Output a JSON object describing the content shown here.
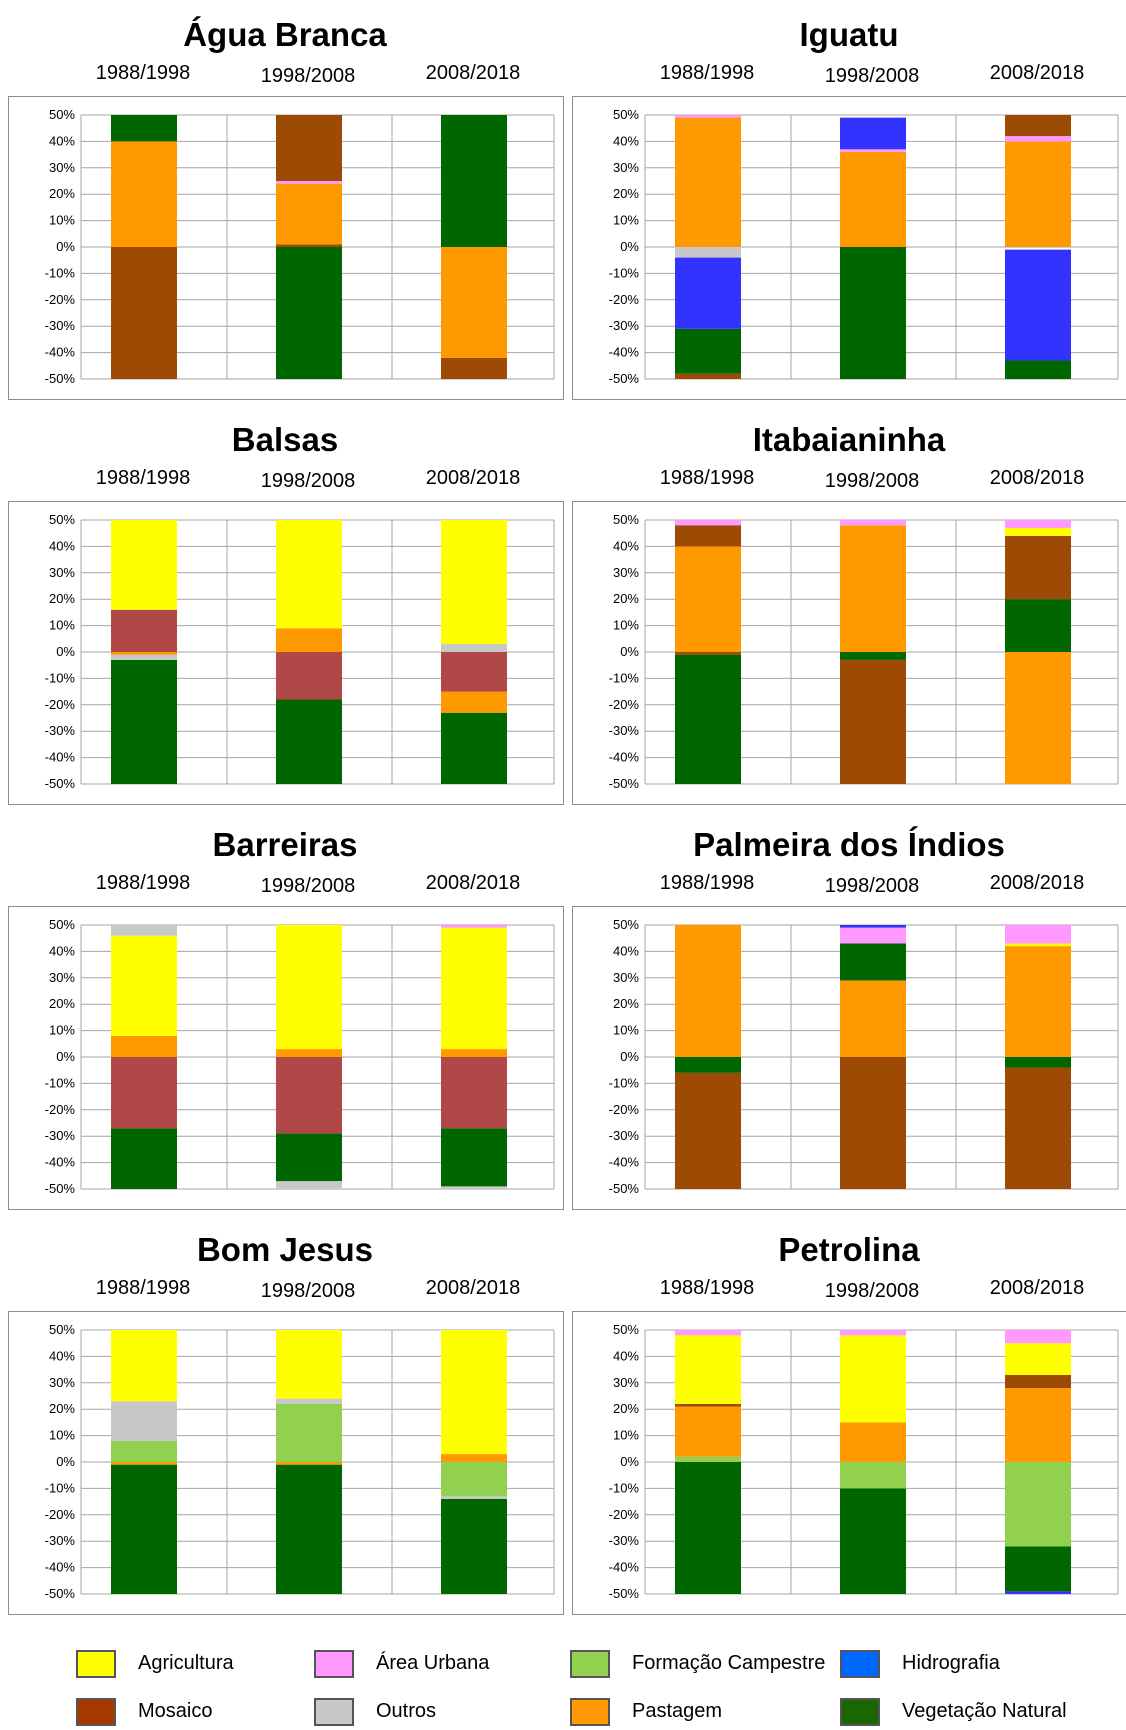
{
  "colors": {
    "Agricultura": "#ffff00",
    "Área Urbana": "#ff99ff",
    "Formação Campestre": "#92d050",
    "Hidrografia": "#3333ff",
    "Mosaico": "#9c4a04",
    "Mosaico (Agric.)": "#b04848",
    "Outros": "#c8c8c8",
    "Pastagem": "#ff9900",
    "Vegetação Natural": "#006600"
  },
  "legend": [
    {
      "label": "Agricultura",
      "color": "#ffff00"
    },
    {
      "label": "Área Urbana",
      "color": "#ff99ff"
    },
    {
      "label": "Formação Campestre",
      "color": "#92d050"
    },
    {
      "label": "Hidrografia",
      "color": "#0066ff"
    },
    {
      "label": "Mosaico",
      "color": "#a83800"
    },
    {
      "label": "Outros",
      "color": "#c8c8c8"
    },
    {
      "label": "Pastagem",
      "color": "#ff9900"
    },
    {
      "label": "Vegetação Natural",
      "color": "#1a6600"
    }
  ],
  "chart_data": [
    {
      "type": "bar",
      "stacked": true,
      "title": "Água Branca",
      "categories": [
        "1988/1998",
        "1998/2008",
        "2008/2018"
      ],
      "ylim": [
        -50,
        50
      ],
      "yticks": [
        -50,
        -40,
        -30,
        -20,
        -10,
        0,
        10,
        20,
        30,
        40,
        50
      ],
      "ytick_suffix": "%",
      "grid": true,
      "bars": [
        [
          {
            "from": -50,
            "to": 0,
            "class": "Mosaico"
          },
          {
            "from": 0,
            "to": 40,
            "class": "Pastagem"
          },
          {
            "from": 40,
            "to": 50,
            "class": "Vegetação Natural"
          }
        ],
        [
          {
            "from": -50,
            "to": 0,
            "class": "Vegetação Natural"
          },
          {
            "from": 0,
            "to": 1,
            "class": "Mosaico"
          },
          {
            "from": 1,
            "to": 24,
            "class": "Pastagem"
          },
          {
            "from": 24,
            "to": 25,
            "class": "Área Urbana"
          },
          {
            "from": 25,
            "to": 50,
            "class": "Mosaico"
          }
        ],
        [
          {
            "from": -50,
            "to": -42,
            "class": "Mosaico"
          },
          {
            "from": -42,
            "to": 0,
            "class": "Pastagem"
          },
          {
            "from": 0,
            "to": 50,
            "class": "Vegetação Natural"
          }
        ]
      ]
    },
    {
      "type": "bar",
      "stacked": true,
      "title": "Iguatu",
      "categories": [
        "1988/1998",
        "1998/2008",
        "2008/2018"
      ],
      "ylim": [
        -50,
        50
      ],
      "yticks": [
        -50,
        -40,
        -30,
        -20,
        -10,
        0,
        10,
        20,
        30,
        40,
        50
      ],
      "ytick_suffix": "%",
      "grid": true,
      "bars": [
        [
          {
            "from": -50,
            "to": -48,
            "class": "Mosaico"
          },
          {
            "from": -48,
            "to": -31,
            "class": "Vegetação Natural"
          },
          {
            "from": -31,
            "to": -4,
            "class": "Hidrografia"
          },
          {
            "from": -4,
            "to": 0,
            "class": "Outros"
          },
          {
            "from": 0,
            "to": 49,
            "class": "Pastagem"
          },
          {
            "from": 49,
            "to": 50,
            "class": "Área Urbana"
          }
        ],
        [
          {
            "from": -50,
            "to": 0,
            "class": "Vegetação Natural"
          },
          {
            "from": 0,
            "to": 36,
            "class": "Pastagem"
          },
          {
            "from": 36,
            "to": 37,
            "class": "Área Urbana"
          },
          {
            "from": 37,
            "to": 49,
            "class": "Hidrografia"
          }
        ],
        [
          {
            "from": -50,
            "to": -43,
            "class": "Vegetação Natural"
          },
          {
            "from": -43,
            "to": -1,
            "class": "Hidrografia"
          },
          {
            "from": 0,
            "to": 40,
            "class": "Pastagem"
          },
          {
            "from": 40,
            "to": 42,
            "class": "Área Urbana"
          },
          {
            "from": 42,
            "to": 50,
            "class": "Mosaico"
          }
        ]
      ]
    },
    {
      "type": "bar",
      "stacked": true,
      "title": "Balsas",
      "categories": [
        "1988/1998",
        "1998/2008",
        "2008/2018"
      ],
      "ylim": [
        -50,
        50
      ],
      "yticks": [
        -50,
        -40,
        -30,
        -20,
        -10,
        0,
        10,
        20,
        30,
        40,
        50
      ],
      "ytick_suffix": "%",
      "grid": true,
      "bars": [
        [
          {
            "from": -50,
            "to": -3,
            "class": "Vegetação Natural"
          },
          {
            "from": -3,
            "to": -1,
            "class": "Outros"
          },
          {
            "from": -1,
            "to": 0,
            "class": "Pastagem"
          },
          {
            "from": 0,
            "to": 16,
            "class": "Mosaico (Agric.)"
          },
          {
            "from": 16,
            "to": 50,
            "class": "Agricultura"
          }
        ],
        [
          {
            "from": -50,
            "to": -18,
            "class": "Vegetação Natural"
          },
          {
            "from": -18,
            "to": 0,
            "class": "Mosaico (Agric.)"
          },
          {
            "from": 0,
            "to": 9,
            "class": "Pastagem"
          },
          {
            "from": 9,
            "to": 50,
            "class": "Agricultura"
          }
        ],
        [
          {
            "from": -50,
            "to": -23,
            "class": "Vegetação Natural"
          },
          {
            "from": -23,
            "to": -15,
            "class": "Pastagem"
          },
          {
            "from": -15,
            "to": 0,
            "class": "Mosaico (Agric.)"
          },
          {
            "from": 0,
            "to": 3,
            "class": "Outros"
          },
          {
            "from": 3,
            "to": 50,
            "class": "Agricultura"
          }
        ]
      ]
    },
    {
      "type": "bar",
      "stacked": true,
      "title": "Itabaianinha",
      "categories": [
        "1988/1998",
        "1998/2008",
        "2008/2018"
      ],
      "ylim": [
        -50,
        50
      ],
      "yticks": [
        -50,
        -40,
        -30,
        -20,
        -10,
        0,
        10,
        20,
        30,
        40,
        50
      ],
      "ytick_suffix": "%",
      "grid": true,
      "bars": [
        [
          {
            "from": -50,
            "to": -1,
            "class": "Vegetação Natural"
          },
          {
            "from": -1,
            "to": 0,
            "class": "Mosaico"
          },
          {
            "from": 0,
            "to": 40,
            "class": "Pastagem"
          },
          {
            "from": 40,
            "to": 48,
            "class": "Mosaico"
          },
          {
            "from": 48,
            "to": 50,
            "class": "Área Urbana"
          }
        ],
        [
          {
            "from": -50,
            "to": -3,
            "class": "Mosaico"
          },
          {
            "from": -3,
            "to": 0,
            "class": "Vegetação Natural"
          },
          {
            "from": 0,
            "to": 48,
            "class": "Pastagem"
          },
          {
            "from": 48,
            "to": 50,
            "class": "Área Urbana"
          }
        ],
        [
          {
            "from": -50,
            "to": 0,
            "class": "Pastagem"
          },
          {
            "from": 0,
            "to": 20,
            "class": "Vegetação Natural"
          },
          {
            "from": 20,
            "to": 44,
            "class": "Mosaico"
          },
          {
            "from": 44,
            "to": 47,
            "class": "Agricultura"
          },
          {
            "from": 47,
            "to": 50,
            "class": "Área Urbana"
          }
        ]
      ]
    },
    {
      "type": "bar",
      "stacked": true,
      "title": "Barreiras",
      "categories": [
        "1988/1998",
        "1998/2008",
        "2008/2018"
      ],
      "ylim": [
        -50,
        50
      ],
      "yticks": [
        -50,
        -40,
        -30,
        -20,
        -10,
        0,
        10,
        20,
        30,
        40,
        50
      ],
      "ytick_suffix": "%",
      "grid": true,
      "bars": [
        [
          {
            "from": -50,
            "to": -27,
            "class": "Vegetação Natural"
          },
          {
            "from": -27,
            "to": 0,
            "class": "Mosaico (Agric.)"
          },
          {
            "from": 0,
            "to": 8,
            "class": "Pastagem"
          },
          {
            "from": 8,
            "to": 46,
            "class": "Agricultura"
          },
          {
            "from": 46,
            "to": 50,
            "class": "Outros"
          }
        ],
        [
          {
            "from": -50,
            "to": -47,
            "class": "Outros"
          },
          {
            "from": -47,
            "to": -29,
            "class": "Vegetação Natural"
          },
          {
            "from": -29,
            "to": 0,
            "class": "Mosaico (Agric.)"
          },
          {
            "from": 0,
            "to": 3,
            "class": "Pastagem"
          },
          {
            "from": 3,
            "to": 50,
            "class": "Agricultura"
          }
        ],
        [
          {
            "from": -50,
            "to": -49,
            "class": "Outros"
          },
          {
            "from": -49,
            "to": -27,
            "class": "Vegetação Natural"
          },
          {
            "from": -27,
            "to": 0,
            "class": "Mosaico (Agric.)"
          },
          {
            "from": 0,
            "to": 3,
            "class": "Pastagem"
          },
          {
            "from": 3,
            "to": 49,
            "class": "Agricultura"
          },
          {
            "from": 49,
            "to": 50,
            "class": "Área Urbana"
          }
        ]
      ]
    },
    {
      "type": "bar",
      "stacked": true,
      "title": "Palmeira dos Índios",
      "categories": [
        "1988/1998",
        "1998/2008",
        "2008/2018"
      ],
      "ylim": [
        -50,
        50
      ],
      "yticks": [
        -50,
        -40,
        -30,
        -20,
        -10,
        0,
        10,
        20,
        30,
        40,
        50
      ],
      "ytick_suffix": "%",
      "grid": true,
      "bars": [
        [
          {
            "from": -50,
            "to": -6,
            "class": "Mosaico"
          },
          {
            "from": -6,
            "to": 0,
            "class": "Vegetação Natural"
          },
          {
            "from": 0,
            "to": 50,
            "class": "Pastagem"
          }
        ],
        [
          {
            "from": -50,
            "to": 0,
            "class": "Mosaico"
          },
          {
            "from": 0,
            "to": 29,
            "class": "Pastagem"
          },
          {
            "from": 29,
            "to": 43,
            "class": "Vegetação Natural"
          },
          {
            "from": 43,
            "to": 49,
            "class": "Área Urbana"
          },
          {
            "from": 49,
            "to": 50,
            "class": "Hidrografia"
          }
        ],
        [
          {
            "from": -50,
            "to": -4,
            "class": "Mosaico"
          },
          {
            "from": -4,
            "to": 0,
            "class": "Vegetação Natural"
          },
          {
            "from": 0,
            "to": 42,
            "class": "Pastagem"
          },
          {
            "from": 42,
            "to": 43,
            "class": "Agricultura"
          },
          {
            "from": 43,
            "to": 50,
            "class": "Área Urbana"
          }
        ]
      ]
    },
    {
      "type": "bar",
      "stacked": true,
      "title": "Bom Jesus",
      "categories": [
        "1988/1998",
        "1998/2008",
        "2008/2018"
      ],
      "ylim": [
        -50,
        50
      ],
      "yticks": [
        -50,
        -40,
        -30,
        -20,
        -10,
        0,
        10,
        20,
        30,
        40,
        50
      ],
      "ytick_suffix": "%",
      "grid": true,
      "bars": [
        [
          {
            "from": -50,
            "to": -1,
            "class": "Vegetação Natural"
          },
          {
            "from": -1,
            "to": 0,
            "class": "Pastagem"
          },
          {
            "from": 0,
            "to": 8,
            "class": "Formação Campestre"
          },
          {
            "from": 8,
            "to": 23,
            "class": "Outros"
          },
          {
            "from": 23,
            "to": 50,
            "class": "Agricultura"
          }
        ],
        [
          {
            "from": -50,
            "to": -1,
            "class": "Vegetação Natural"
          },
          {
            "from": -1,
            "to": 0,
            "class": "Pastagem"
          },
          {
            "from": 0,
            "to": 22,
            "class": "Formação Campestre"
          },
          {
            "from": 22,
            "to": 24,
            "class": "Outros"
          },
          {
            "from": 24,
            "to": 50,
            "class": "Agricultura"
          }
        ],
        [
          {
            "from": -50,
            "to": -14,
            "class": "Vegetação Natural"
          },
          {
            "from": -14,
            "to": -13,
            "class": "Outros"
          },
          {
            "from": -13,
            "to": 0,
            "class": "Formação Campestre"
          },
          {
            "from": 0,
            "to": 3,
            "class": "Pastagem"
          },
          {
            "from": 3,
            "to": 50,
            "class": "Agricultura"
          }
        ]
      ]
    },
    {
      "type": "bar",
      "stacked": true,
      "title": "Petrolina",
      "categories": [
        "1988/1998",
        "1998/2008",
        "2008/2018"
      ],
      "ylim": [
        -50,
        50
      ],
      "yticks": [
        -50,
        -40,
        -30,
        -20,
        -10,
        0,
        10,
        20,
        30,
        40,
        50
      ],
      "ytick_suffix": "%",
      "grid": true,
      "bars": [
        [
          {
            "from": -50,
            "to": 0,
            "class": "Vegetação Natural"
          },
          {
            "from": 0,
            "to": 2,
            "class": "Formação Campestre"
          },
          {
            "from": 2,
            "to": 21,
            "class": "Pastagem"
          },
          {
            "from": 21,
            "to": 22,
            "class": "Mosaico"
          },
          {
            "from": 22,
            "to": 48,
            "class": "Agricultura"
          },
          {
            "from": 48,
            "to": 50,
            "class": "Área Urbana"
          }
        ],
        [
          {
            "from": -50,
            "to": -10,
            "class": "Vegetação Natural"
          },
          {
            "from": -10,
            "to": 0,
            "class": "Formação Campestre"
          },
          {
            "from": 0,
            "to": 15,
            "class": "Pastagem"
          },
          {
            "from": 15,
            "to": 48,
            "class": "Agricultura"
          },
          {
            "from": 48,
            "to": 50,
            "class": "Área Urbana"
          }
        ],
        [
          {
            "from": -50,
            "to": -49,
            "class": "Hidrografia"
          },
          {
            "from": -49,
            "to": -32,
            "class": "Vegetação Natural"
          },
          {
            "from": -32,
            "to": 0,
            "class": "Formação Campestre"
          },
          {
            "from": 0,
            "to": 28,
            "class": "Pastagem"
          },
          {
            "from": 28,
            "to": 33,
            "class": "Mosaico"
          },
          {
            "from": 33,
            "to": 45,
            "class": "Agricultura"
          },
          {
            "from": 45,
            "to": 50,
            "class": "Área Urbana"
          }
        ]
      ]
    }
  ]
}
